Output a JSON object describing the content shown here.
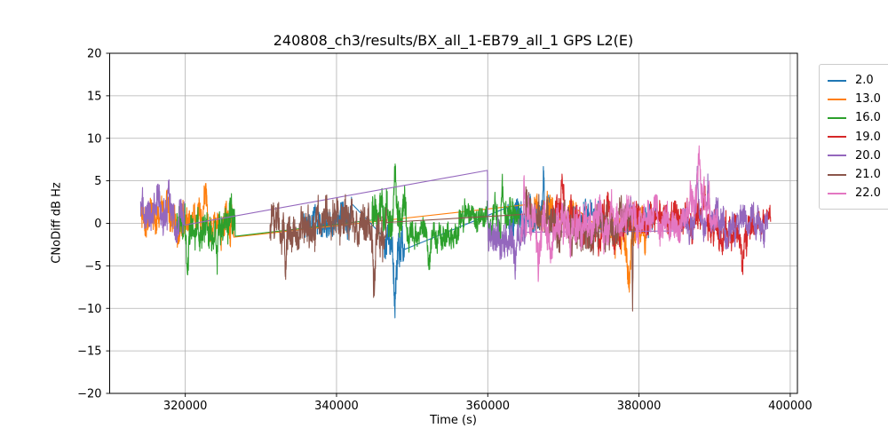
{
  "chart_data": {
    "type": "line",
    "title": "240808_ch3/results/BX_all_1-EB79_all_1 GPS L2(E)",
    "xlabel": "Time (s)",
    "ylabel": "CNoDiff dB Hz",
    "xlim": [
      310000,
      400950
    ],
    "ylim": [
      -20,
      20
    ],
    "xticks": [
      320000,
      340000,
      360000,
      380000,
      400000
    ],
    "xtick_labels": [
      "320000",
      "340000",
      "360000",
      "380000",
      "400000"
    ],
    "yticks": [
      -20,
      -15,
      -10,
      -5,
      0,
      5,
      10,
      15,
      20
    ],
    "ytick_labels": [
      "−20",
      "−15",
      "−10",
      "−5",
      "0",
      "5",
      "10",
      "15",
      "20"
    ],
    "grid": true,
    "grid_color": "#b0b0b0",
    "background": "#ffffff",
    "legend": {
      "position": "right-outside-top",
      "entries": [
        "2.0",
        "13.0",
        "16.0",
        "19.0",
        "20.0",
        "21.0",
        "22.0"
      ]
    },
    "sample_step_s": 25,
    "series_note": "noisy CNo-difference traces; segments = [t_start_s, t_end_s, mean_dB, amplitude_dB], spikes = [t_s, peak_offset_dB, width_s]; gaps between segments are bridged by thin straight connector lines",
    "series": [
      {
        "name": "2.0",
        "color": "#1f77b4",
        "segments": [
          [
            335600,
            342000,
            0.4,
            2.2
          ],
          [
            346300,
            349000,
            -2.5,
            2.6
          ],
          [
            362600,
            369000,
            0.8,
            2.3
          ],
          [
            371200,
            375500,
            0.8,
            1.9
          ],
          [
            378300,
            382200,
            0.8,
            2.0
          ]
        ],
        "spikes": [
          [
            347700,
            -6.5,
            300
          ],
          [
            367400,
            6.5,
            120
          ]
        ]
      },
      {
        "name": "13.0",
        "color": "#ff7f0e",
        "segments": [
          [
            314200,
            319300,
            0.2,
            2.3
          ],
          [
            319300,
            326400,
            0.3,
            2.3
          ],
          [
            365800,
            368600,
            1.4,
            2.0
          ],
          [
            370200,
            371900,
            0.8,
            1.9
          ],
          [
            376300,
            380900,
            -1.2,
            2.6
          ]
        ],
        "spikes": [
          [
            317600,
            3.0,
            300
          ],
          [
            322600,
            3.5,
            200
          ],
          [
            378600,
            -5.5,
            350
          ]
        ]
      },
      {
        "name": "16.0",
        "color": "#2ca02c",
        "segments": [
          [
            318900,
            326600,
            0.0,
            2.6
          ],
          [
            344700,
            349200,
            1.0,
            2.8
          ],
          [
            349200,
            356200,
            -1.0,
            1.9
          ],
          [
            356200,
            360700,
            0.7,
            1.9
          ],
          [
            360700,
            364200,
            1.4,
            2.2
          ]
        ],
        "spikes": [
          [
            320300,
            -6.0,
            250
          ],
          [
            324200,
            -4.0,
            150
          ],
          [
            347700,
            5.0,
            200
          ],
          [
            352300,
            -3.0,
            250
          ],
          [
            361900,
            4.0,
            150
          ]
        ]
      },
      {
        "name": "19.0",
        "color": "#d62728",
        "segments": [
          [
            368500,
            372100,
            0.8,
            2.5
          ],
          [
            372100,
            378200,
            -0.4,
            2.7
          ],
          [
            378200,
            390200,
            0.4,
            2.3
          ],
          [
            390200,
            395200,
            -1.0,
            2.4
          ],
          [
            395200,
            397400,
            0.2,
            1.6
          ]
        ],
        "spikes": [
          [
            369800,
            3.5,
            200
          ],
          [
            393700,
            -4.0,
            300
          ]
        ]
      },
      {
        "name": "20.0",
        "color": "#9467bd",
        "segments": [
          [
            314100,
            319900,
            0.9,
            2.6
          ],
          [
            359950,
            365100,
            -1.2,
            2.5
          ],
          [
            385700,
            397000,
            0.2,
            2.1
          ]
        ],
        "spikes": [
          [
            316400,
            3.2,
            250
          ],
          [
            317800,
            2.5,
            150
          ],
          [
            359950,
            7.0,
            60
          ],
          [
            363600,
            -3.5,
            250
          ],
          [
            387700,
            5.2,
            180
          ],
          [
            389100,
            4.2,
            150
          ],
          [
            391600,
            -3.5,
            250
          ]
        ]
      },
      {
        "name": "21.0",
        "color": "#8c564b",
        "segments": [
          [
            331200,
            337600,
            -0.4,
            2.8
          ],
          [
            337600,
            343600,
            0.5,
            2.6
          ],
          [
            343600,
            346600,
            -1.2,
            3.0
          ],
          [
            364900,
            370100,
            1.0,
            2.5
          ],
          [
            370100,
            375600,
            -0.4,
            2.8
          ],
          [
            375600,
            379400,
            0.0,
            2.4
          ]
        ],
        "spikes": [
          [
            333300,
            -4.5,
            250
          ],
          [
            345000,
            -5.5,
            250
          ],
          [
            379150,
            -9.0,
            70
          ]
        ]
      },
      {
        "name": "22.0",
        "color": "#e377c2",
        "segments": [
          [
            364400,
            370100,
            -0.4,
            2.9
          ],
          [
            370100,
            377100,
            0.0,
            2.8
          ],
          [
            377100,
            383100,
            0.3,
            2.5
          ],
          [
            383100,
            386600,
            0.5,
            2.2
          ],
          [
            386600,
            389300,
            1.8,
            2.6
          ],
          [
            389300,
            390400,
            0.0,
            2.0
          ]
        ],
        "spikes": [
          [
            364800,
            5.5,
            120
          ],
          [
            366700,
            -4.5,
            250
          ],
          [
            388000,
            5.0,
            250
          ]
        ]
      }
    ]
  }
}
